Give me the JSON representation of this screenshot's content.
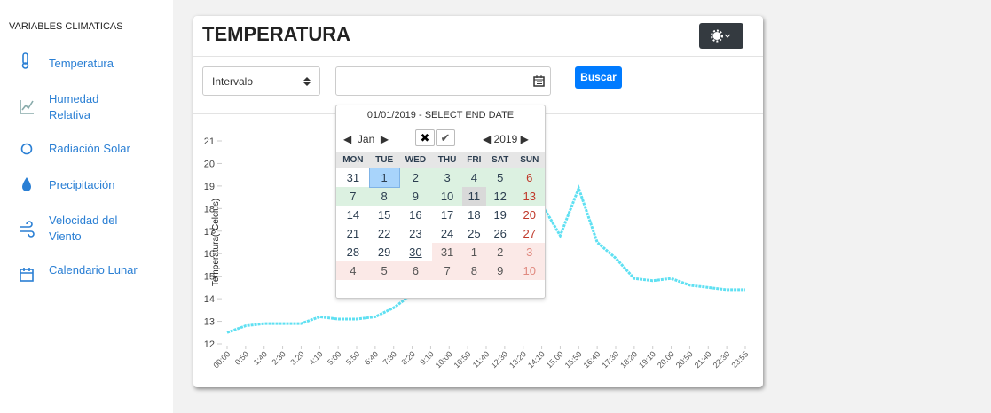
{
  "sidebar": {
    "heading": "VARIABLES CLIMATICAS",
    "items": [
      "Temperatura",
      "Humedad Relativa",
      "Radiación Solar",
      "Precipitación",
      "Velocidad del Viento",
      "Calendario Lunar"
    ]
  },
  "card": {
    "title": "TEMPERATURA",
    "select": "Intervalo",
    "button": "Buscar"
  },
  "datepicker": {
    "header": "01/01/2019 - SELECT END DATE",
    "month": "Jan",
    "year": "2019",
    "weekdays": [
      "MON",
      "TUE",
      "WED",
      "THU",
      "FRI",
      "SAT",
      "SUN"
    ],
    "weeks": [
      [
        31,
        1,
        2,
        3,
        4,
        5,
        6
      ],
      [
        7,
        8,
        9,
        10,
        11,
        12,
        13
      ],
      [
        14,
        15,
        16,
        17,
        18,
        19,
        20
      ],
      [
        21,
        22,
        23,
        24,
        25,
        26,
        27
      ],
      [
        28,
        29,
        30,
        31,
        1,
        2,
        3
      ],
      [
        4,
        5,
        6,
        7,
        8,
        9,
        10
      ]
    ]
  },
  "chart": {
    "type": "line",
    "y_label": "Temperatura(ºCelcius)",
    "color": "#5fe0f2",
    "categories": [
      "00:00",
      "0:50",
      "1:40",
      "2:30",
      "3:20",
      "4:10",
      "5:00",
      "5:50",
      "6:40",
      "7:30",
      "8:20",
      "9:10",
      "10:00",
      "10:50",
      "11:40",
      "12:30",
      "13:20",
      "14:10",
      "15:00",
      "15:50",
      "16:40",
      "17:30",
      "18:20",
      "19:10",
      "20:00",
      "20:50",
      "21:40",
      "22:30",
      "23:55"
    ],
    "values": [
      12.5,
      12.8,
      12.9,
      12.9,
      12.9,
      13.2,
      13.1,
      13.1,
      13.2,
      13.6,
      14.2,
      15,
      16,
      17,
      18,
      18.8,
      19.2,
      18.2,
      16.8,
      18.9,
      16.5,
      15.8,
      14.9,
      14.8,
      14.9,
      14.6,
      14.5,
      14.4,
      14.4
    ],
    "ylim": [
      12,
      21
    ],
    "yticks": [
      12,
      13,
      14,
      15,
      16,
      17,
      18,
      19,
      20,
      21
    ]
  }
}
